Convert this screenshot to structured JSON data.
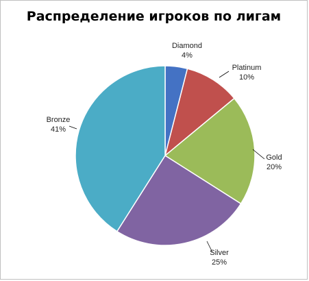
{
  "chart_data": {
    "type": "pie",
    "title": "Распределение игроков по лигам",
    "slices": [
      {
        "label": "Diamond",
        "value": 4,
        "value_label": "4%",
        "color": "#4472C4"
      },
      {
        "label": "Platinum",
        "value": 10,
        "value_label": "10%",
        "color": "#C0504D"
      },
      {
        "label": "Gold",
        "value": 20,
        "value_label": "20%",
        "color": "#9BBB59"
      },
      {
        "label": "Silver",
        "value": 25,
        "value_label": "25%",
        "color": "#8064A2"
      },
      {
        "label": "Bronze",
        "value": 41,
        "value_label": "41%",
        "color": "#4BACC6"
      }
    ],
    "start_angle": "12 o'clock",
    "direction": "clockwise",
    "legend": "none",
    "data_labels": "outside with leader lines"
  }
}
